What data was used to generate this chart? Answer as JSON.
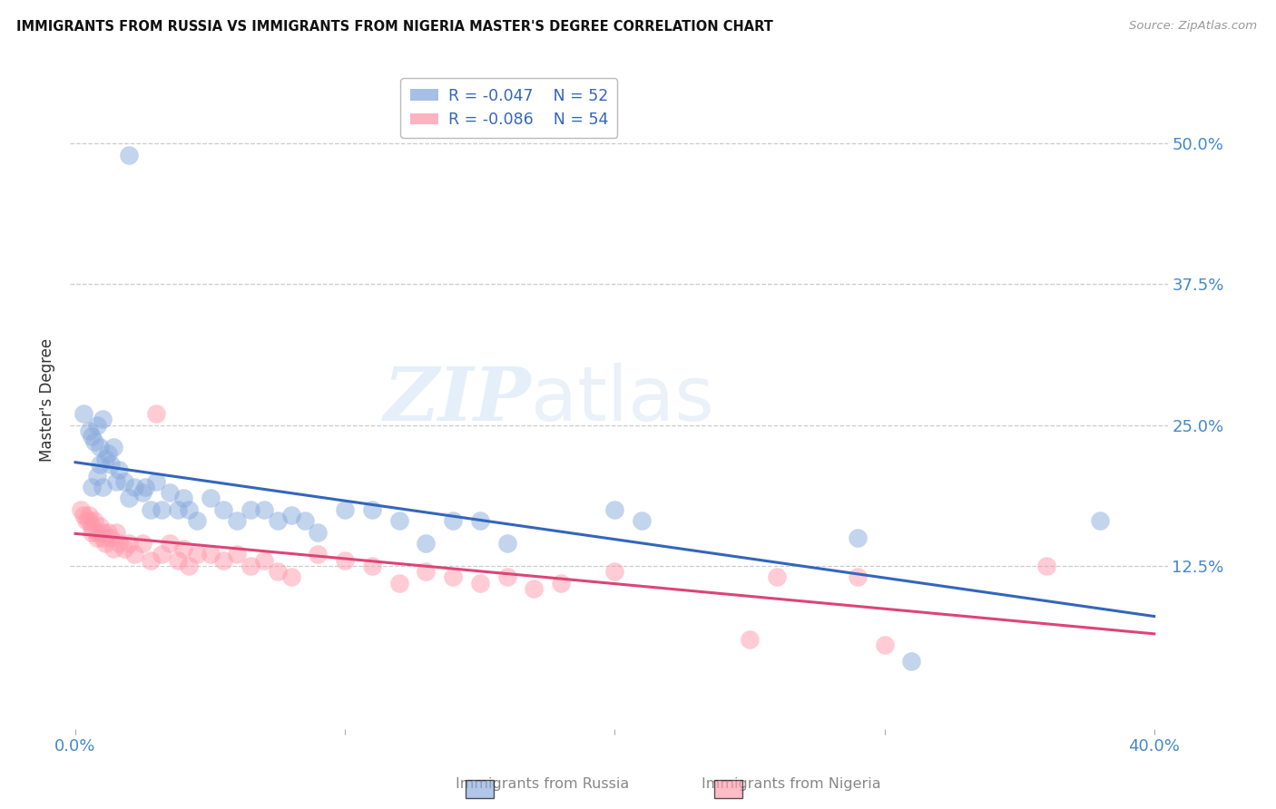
{
  "title": "IMMIGRANTS FROM RUSSIA VS IMMIGRANTS FROM NIGERIA MASTER'S DEGREE CORRELATION CHART",
  "source": "Source: ZipAtlas.com",
  "ylabel": "Master's Degree",
  "ytick_labels": [
    "50.0%",
    "37.5%",
    "25.0%",
    "12.5%"
  ],
  "ytick_values": [
    0.5,
    0.375,
    0.25,
    0.125
  ],
  "xlim": [
    -0.002,
    0.405
  ],
  "ylim": [
    -0.02,
    0.565
  ],
  "watermark_left": "ZIP",
  "watermark_right": "atlas",
  "legend_russia_r": "R = -0.047",
  "legend_russia_n": "N = 52",
  "legend_nigeria_r": "R = -0.086",
  "legend_nigeria_n": "N = 54",
  "russia_color": "#88AADD",
  "nigeria_color": "#FF99AA",
  "trendline_russia_color": "#3366BB",
  "trendline_nigeria_color": "#DD4477",
  "russia_x": [
    0.02,
    0.003,
    0.006,
    0.008,
    0.009,
    0.005,
    0.007,
    0.01,
    0.011,
    0.012,
    0.013,
    0.014,
    0.015,
    0.016,
    0.006,
    0.008,
    0.009,
    0.01,
    0.018,
    0.02,
    0.022,
    0.025,
    0.026,
    0.028,
    0.03,
    0.032,
    0.035,
    0.038,
    0.04,
    0.042,
    0.045,
    0.05,
    0.055,
    0.06,
    0.065,
    0.07,
    0.075,
    0.08,
    0.085,
    0.09,
    0.1,
    0.11,
    0.12,
    0.13,
    0.14,
    0.15,
    0.16,
    0.2,
    0.21,
    0.29,
    0.31,
    0.38
  ],
  "russia_y": [
    0.49,
    0.26,
    0.24,
    0.25,
    0.23,
    0.245,
    0.235,
    0.255,
    0.22,
    0.225,
    0.215,
    0.23,
    0.2,
    0.21,
    0.195,
    0.205,
    0.215,
    0.195,
    0.2,
    0.185,
    0.195,
    0.19,
    0.195,
    0.175,
    0.2,
    0.175,
    0.19,
    0.175,
    0.185,
    0.175,
    0.165,
    0.185,
    0.175,
    0.165,
    0.175,
    0.175,
    0.165,
    0.17,
    0.165,
    0.155,
    0.175,
    0.175,
    0.165,
    0.145,
    0.165,
    0.165,
    0.145,
    0.175,
    0.165,
    0.15,
    0.04,
    0.165
  ],
  "nigeria_x": [
    0.002,
    0.003,
    0.004,
    0.005,
    0.005,
    0.006,
    0.006,
    0.007,
    0.008,
    0.008,
    0.009,
    0.01,
    0.01,
    0.011,
    0.012,
    0.013,
    0.014,
    0.015,
    0.016,
    0.018,
    0.02,
    0.022,
    0.025,
    0.028,
    0.03,
    0.032,
    0.035,
    0.038,
    0.04,
    0.042,
    0.045,
    0.05,
    0.055,
    0.06,
    0.065,
    0.07,
    0.075,
    0.08,
    0.09,
    0.1,
    0.11,
    0.12,
    0.13,
    0.14,
    0.15,
    0.16,
    0.17,
    0.18,
    0.2,
    0.25,
    0.26,
    0.29,
    0.3,
    0.36
  ],
  "nigeria_y": [
    0.175,
    0.17,
    0.165,
    0.17,
    0.165,
    0.16,
    0.155,
    0.165,
    0.155,
    0.15,
    0.16,
    0.155,
    0.15,
    0.145,
    0.155,
    0.15,
    0.14,
    0.155,
    0.145,
    0.14,
    0.145,
    0.135,
    0.145,
    0.13,
    0.26,
    0.135,
    0.145,
    0.13,
    0.14,
    0.125,
    0.135,
    0.135,
    0.13,
    0.135,
    0.125,
    0.13,
    0.12,
    0.115,
    0.135,
    0.13,
    0.125,
    0.11,
    0.12,
    0.115,
    0.11,
    0.115,
    0.105,
    0.11,
    0.12,
    0.06,
    0.115,
    0.115,
    0.055,
    0.125
  ]
}
